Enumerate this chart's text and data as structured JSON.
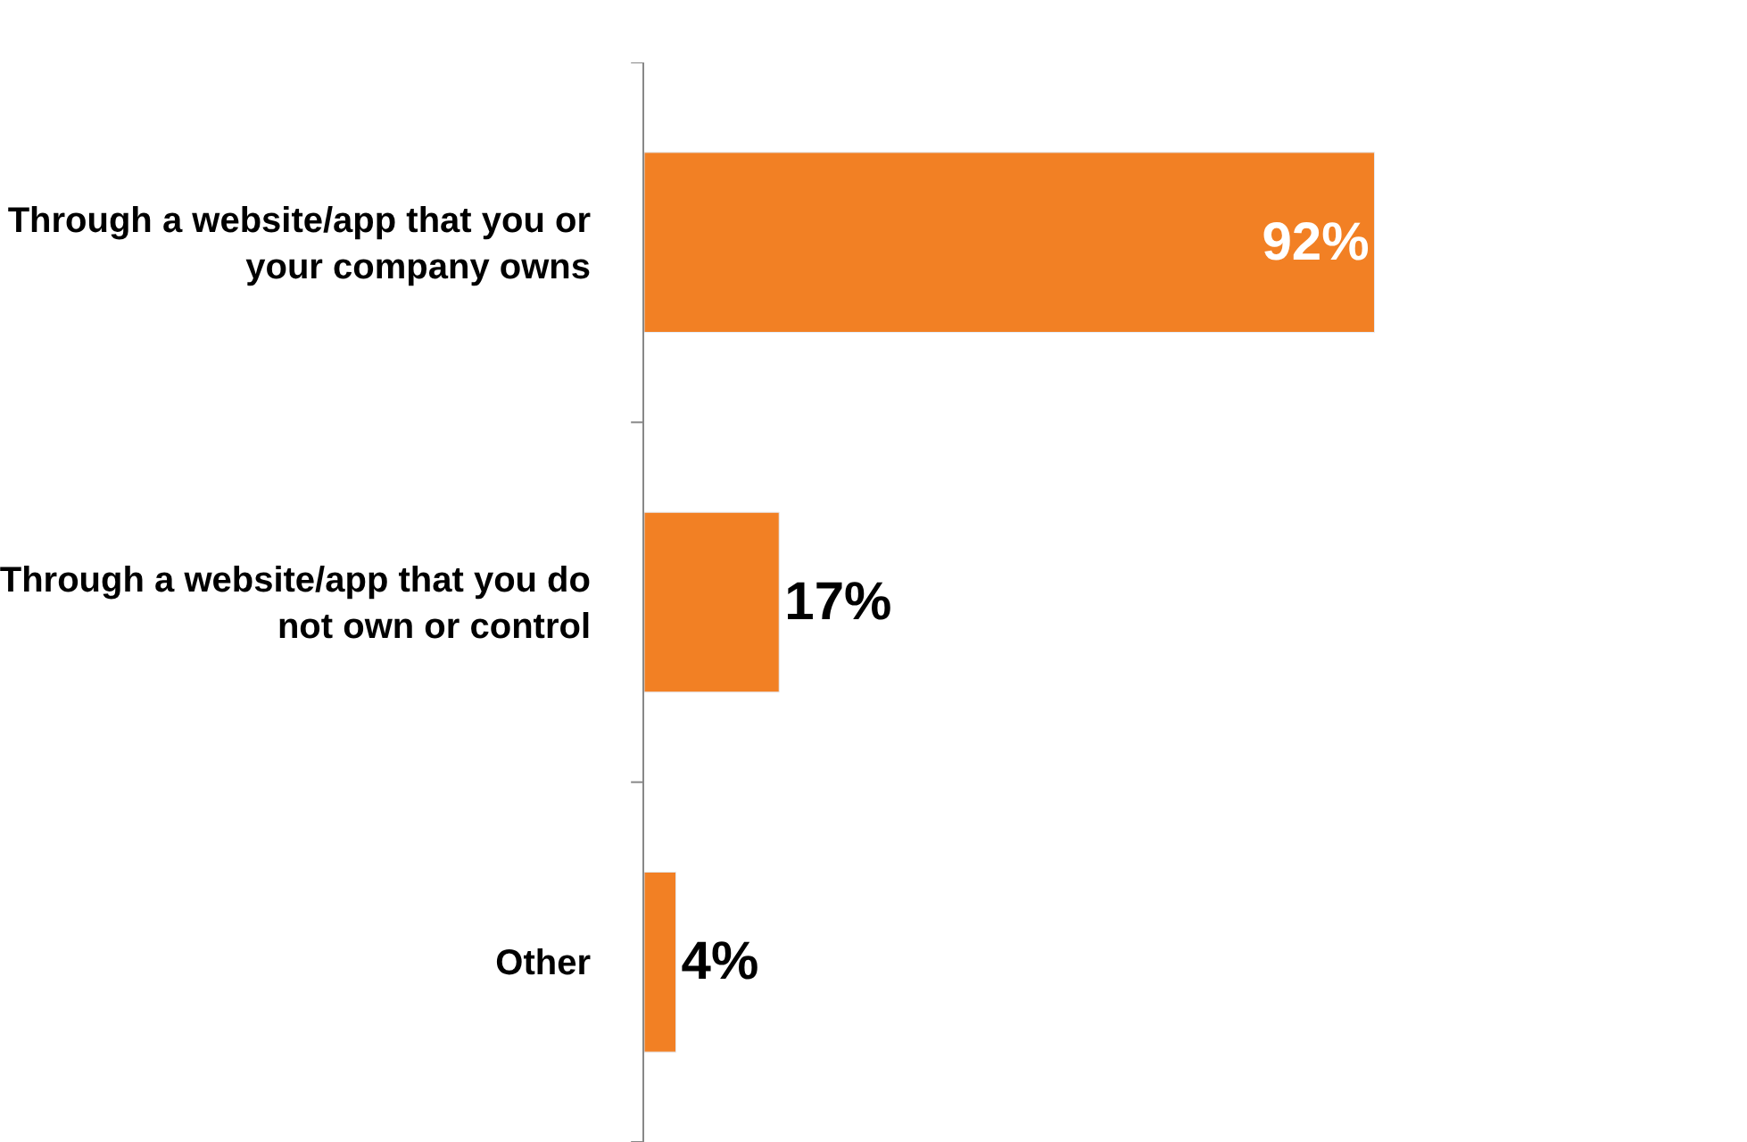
{
  "chart_data": {
    "type": "bar",
    "orientation": "horizontal",
    "categories": [
      "Through a website/app that you or your company owns",
      "Through a website/app that you do not own or control",
      "Other"
    ],
    "values": [
      92,
      17,
      4
    ],
    "value_labels": [
      "92%",
      "17%",
      "4%"
    ],
    "color": "#f28024"
  }
}
